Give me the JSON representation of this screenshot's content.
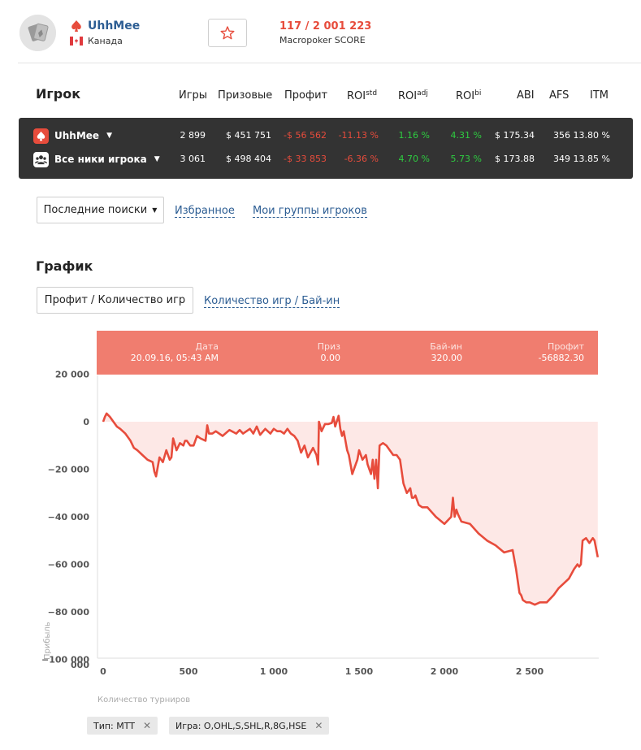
{
  "player": {
    "name": "UhhMee",
    "country": "Канада",
    "score_value": "117 / 2 001 223",
    "score_label": "Macropoker SCORE"
  },
  "stats": {
    "title": "Игрок",
    "headers": {
      "games": "Игры",
      "prizes": "Призовые",
      "profit": "Профит",
      "roi_std": "ROI",
      "roi_std_sup": "std",
      "roi_adj": "ROI",
      "roi_adj_sup": "adj",
      "roi_bi": "ROI",
      "roi_bi_sup": "bi",
      "abi": "ABI",
      "afs": "AFS",
      "itm": "ITM"
    },
    "rows": [
      {
        "name": "UhhMee",
        "games": "2 899",
        "prizes": "$ 451 751",
        "profit": "-$ 56 562",
        "roi_std": "-11.13 %",
        "roi_adj": "1.16 %",
        "roi_bi": "4.31 %",
        "abi": "$ 175.34",
        "afs": "356",
        "itm": "13.80 %"
      },
      {
        "name": "Все ники игрока",
        "games": "3 061",
        "prizes": "$ 498 404",
        "profit": "-$ 33 853",
        "roi_std": "-6.36 %",
        "roi_adj": "4.70 %",
        "roi_bi": "5.73 %",
        "abi": "$ 173.88",
        "afs": "349",
        "itm": "13.85 %"
      }
    ]
  },
  "nav": {
    "recent_searches": "Последние поиски",
    "favorites": "Избранное",
    "my_groups": "Мои группы игроков"
  },
  "chart_section": {
    "title": "График",
    "tab_active": "Профит / Количество игр",
    "tab_other": "Количество игр / Бай-ин"
  },
  "tooltip": {
    "date_label": "Дата",
    "date_value": "20.09.16, 05:43 AM",
    "prize_label": "Приз",
    "prize_value": "0.00",
    "buyin_label": "Бай-ин",
    "buyin_value": "320.00",
    "profit_label": "Профит",
    "profit_value": "-56882.30"
  },
  "filters": [
    {
      "label": "Тип: MTT"
    },
    {
      "label": "Игра: O,OHL,S,SHL,R,8G,HSE"
    }
  ],
  "colors": {
    "accent": "#e74c3c",
    "link": "#2c5d93",
    "positive": "#2ecc40",
    "table_bg": "#333333",
    "tooltip_bg": "#f07d6f",
    "area_fill": "#fde8e6"
  },
  "chart_data": {
    "type": "area",
    "xlabel": "Количество турниров",
    "ylabel": "Прибыль",
    "xlim": [
      0,
      2899
    ],
    "ylim": [
      -100000,
      20000
    ],
    "x_ticks": [
      0,
      500,
      1000,
      1500,
      2000,
      2500
    ],
    "x_tick_labels": [
      "0",
      "500",
      "1 000",
      "1 500",
      "2 000",
      "2 500"
    ],
    "y_ticks": [
      20000,
      0,
      -20000,
      -40000,
      -60000,
      -80000,
      -100000
    ],
    "y_tick_labels": [
      "20 000",
      "0",
      "−20 000",
      "−40 000",
      "−60 000",
      "−80 000",
      "−100 000"
    ],
    "series": [
      {
        "x": [
          0,
          10,
          20,
          40,
          60,
          80,
          100,
          130,
          160,
          180,
          200,
          230,
          260,
          290,
          300,
          310,
          330,
          350,
          370,
          390,
          400,
          410,
          430,
          450,
          470,
          480,
          490,
          510,
          530,
          550,
          570,
          600,
          610,
          620,
          640,
          660,
          700,
          740,
          780,
          800,
          820,
          860,
          880,
          900,
          920,
          950,
          980,
          1000,
          1020,
          1040,
          1060,
          1080,
          1100,
          1120,
          1140,
          1160,
          1180,
          1200,
          1230,
          1250,
          1260,
          1265,
          1280,
          1300,
          1320,
          1340,
          1350,
          1360,
          1380,
          1390,
          1400,
          1410,
          1420,
          1430,
          1440,
          1450,
          1460,
          1480,
          1490,
          1500,
          1520,
          1540,
          1550,
          1570,
          1580,
          1590,
          1600,
          1610,
          1620,
          1640,
          1660,
          1680,
          1700,
          1720,
          1740,
          1760,
          1780,
          1800,
          1810,
          1820,
          1830,
          1850,
          1870,
          1900,
          1950,
          2000,
          2040,
          2050,
          2060,
          2070,
          2080,
          2100,
          2150,
          2200,
          2250,
          2300,
          2350,
          2400,
          2420,
          2440,
          2450,
          2460,
          2480,
          2500,
          2530,
          2560,
          2600,
          2640,
          2670,
          2700,
          2730,
          2760,
          2780,
          2790,
          2800,
          2810,
          2830,
          2850,
          2870,
          2880,
          2899
        ],
        "y": [
          0,
          2000,
          3500,
          2000,
          0,
          -2000,
          -3000,
          -5000,
          -8000,
          -11000,
          -12000,
          -14000,
          -16000,
          -17000,
          -21000,
          -23000,
          -15000,
          -17000,
          -12000,
          -16000,
          -15000,
          -7000,
          -12000,
          -9000,
          -10000,
          -8000,
          -8000,
          -10000,
          -10000,
          -6000,
          -7000,
          -8000,
          -1500,
          -5000,
          -5000,
          -4000,
          -6000,
          -3500,
          -5000,
          -3500,
          -5000,
          -3000,
          -5000,
          -2000,
          -5500,
          -3000,
          -5000,
          -3000,
          -4000,
          -4000,
          -5000,
          -3000,
          -5000,
          -6000,
          -8000,
          -13000,
          -10000,
          -15000,
          -11000,
          -14000,
          -18000,
          0,
          -4000,
          -1000,
          -1000,
          -500,
          2000,
          -2000,
          2500,
          -3000,
          -6000,
          -4000,
          -8000,
          -12000,
          -14000,
          -18000,
          -22000,
          -18000,
          -16000,
          -12000,
          -16000,
          -14000,
          -18000,
          -22000,
          -16000,
          -24000,
          -16000,
          -28000,
          -10000,
          -9000,
          -10000,
          -12000,
          -14000,
          -14000,
          -16000,
          -26000,
          -30000,
          -28000,
          -32000,
          -32000,
          -31000,
          -35000,
          -36000,
          -36000,
          -40000,
          -43000,
          -40000,
          -32000,
          -40000,
          -37000,
          -39000,
          -42000,
          -43000,
          -47000,
          -50000,
          -52000,
          -55000,
          -54000,
          -62000,
          -72000,
          -73000,
          -75000,
          -76000,
          -76000,
          -77000,
          -76000,
          -76000,
          -73000,
          -70000,
          -68000,
          -66000,
          -62000,
          -60000,
          -61000,
          -60000,
          -50000,
          -49000,
          -51000,
          -49000,
          -50000,
          -57000
        ]
      }
    ]
  }
}
